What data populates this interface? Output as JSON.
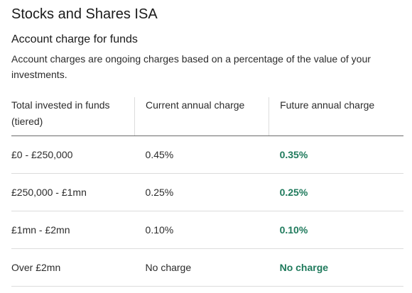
{
  "page": {
    "title": "Stocks and Shares ISA"
  },
  "section": {
    "title": "Account charge for funds",
    "description": "Account charges are ongoing charges based on a percentage of the value of your investments."
  },
  "table": {
    "headers": [
      "Total invested in funds (tiered)",
      "Current annual charge",
      "Future annual charge"
    ],
    "rows": [
      {
        "tier": "£0 - £250,000",
        "current": "0.45%",
        "future": "0.35%"
      },
      {
        "tier": "£250,000 - £1mn",
        "current": "0.25%",
        "future": "0.25%"
      },
      {
        "tier": "£1mn - £2mn",
        "current": "0.10%",
        "future": "0.10%"
      },
      {
        "tier": "Over £2mn",
        "current": "No charge",
        "future": "No charge"
      }
    ]
  },
  "colors": {
    "future_charge_text": "#1f7a5c",
    "header_divider": "#6b6b6b",
    "row_divider": "#dcdcdc"
  }
}
